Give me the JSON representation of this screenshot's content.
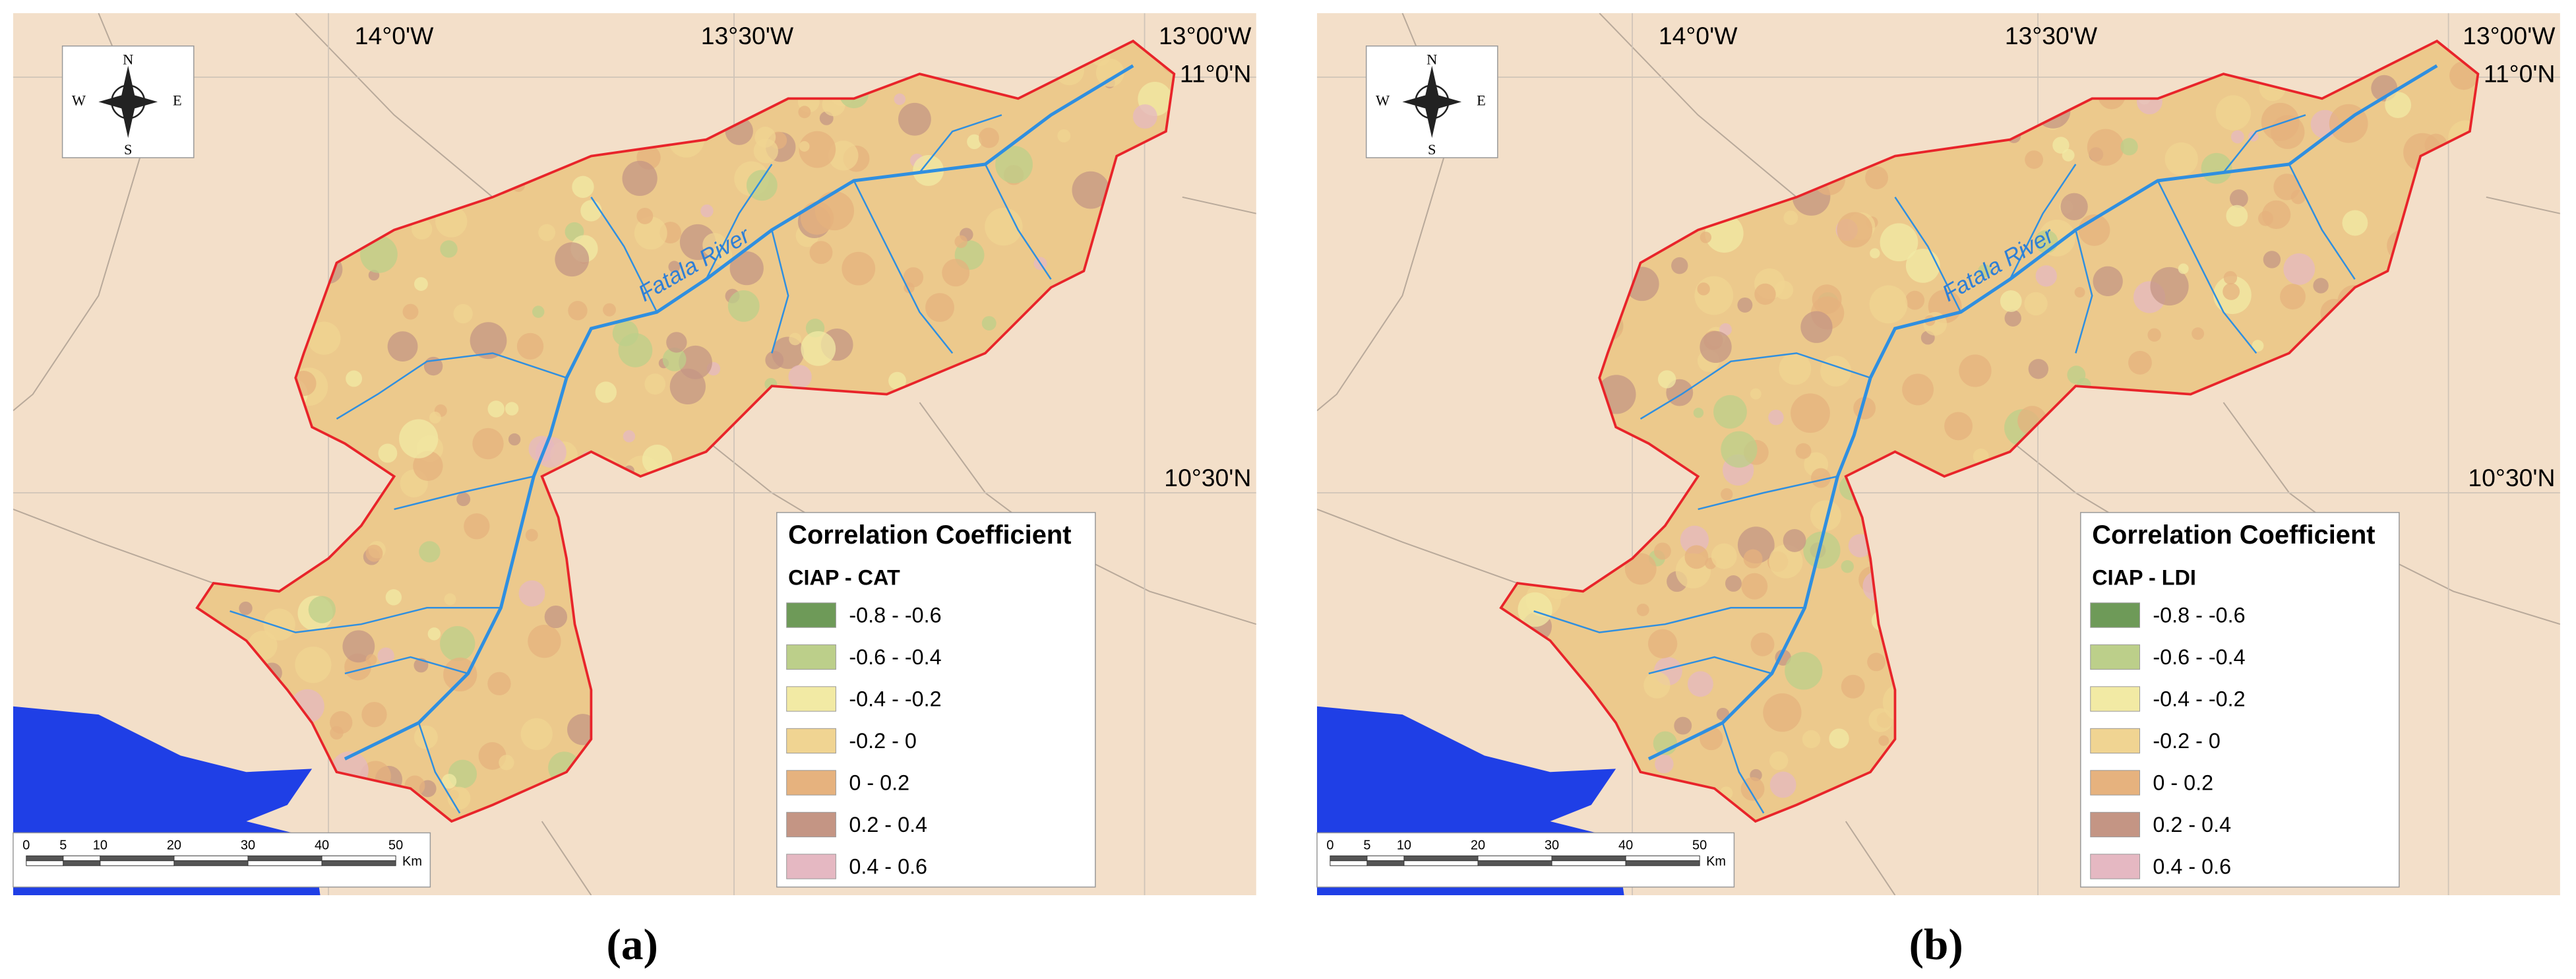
{
  "panels": [
    {
      "caption": "(a)",
      "lon_labels": [
        "14°0'W",
        "13°30'W",
        "13°00'W"
      ],
      "lat_labels": [
        "11°0'N",
        "10°30'N"
      ],
      "compass": {
        "n": "N",
        "s": "S",
        "w": "W",
        "e": "E"
      },
      "river_label": "Fatala River",
      "legend": {
        "title": "Correlation Coefficient",
        "subtitle": "CIAP - CAT",
        "items": [
          {
            "label": "-0.8 - -0.6",
            "color": "#6e9a58"
          },
          {
            "label": "-0.6 - -0.4",
            "color": "#bccf8a"
          },
          {
            "label": "-0.4 - -0.2",
            "color": "#f2eaa4"
          },
          {
            "label": "-0.2 - 0",
            "color": "#f0d492"
          },
          {
            "label": "0 - 0.2",
            "color": "#e6b27e"
          },
          {
            "label": "0.2 - 0.4",
            "color": "#c49584"
          },
          {
            "label": "0.4 - 0.6",
            "color": "#e5b8c2"
          }
        ]
      },
      "scale_bar": {
        "labels": [
          "0",
          "5",
          "10",
          "20",
          "30",
          "40",
          "50"
        ],
        "unit": "Km"
      }
    },
    {
      "caption": "(b)",
      "lon_labels": [
        "14°0'W",
        "13°30'W",
        "13°00'W"
      ],
      "lat_labels": [
        "11°0'N",
        "10°30'N"
      ],
      "compass": {
        "n": "N",
        "s": "S",
        "w": "W",
        "e": "E"
      },
      "river_label": "Fatala River",
      "legend": {
        "title": "Correlation Coefficient",
        "subtitle": "CIAP - LDI",
        "items": [
          {
            "label": "-0.8 - -0.6",
            "color": "#6e9a58"
          },
          {
            "label": "-0.6 - -0.4",
            "color": "#bccf8a"
          },
          {
            "label": "-0.4 - -0.2",
            "color": "#f2eaa4"
          },
          {
            "label": "-0.2 - 0",
            "color": "#f0d492"
          },
          {
            "label": "0 - 0.2",
            "color": "#e6b27e"
          },
          {
            "label": "0.2 - 0.4",
            "color": "#c49584"
          },
          {
            "label": "0.4 - 0.6",
            "color": "#e5b8c2"
          }
        ]
      },
      "scale_bar": {
        "labels": [
          "0",
          "5",
          "10",
          "20",
          "30",
          "40",
          "50"
        ],
        "unit": "Km"
      }
    }
  ]
}
